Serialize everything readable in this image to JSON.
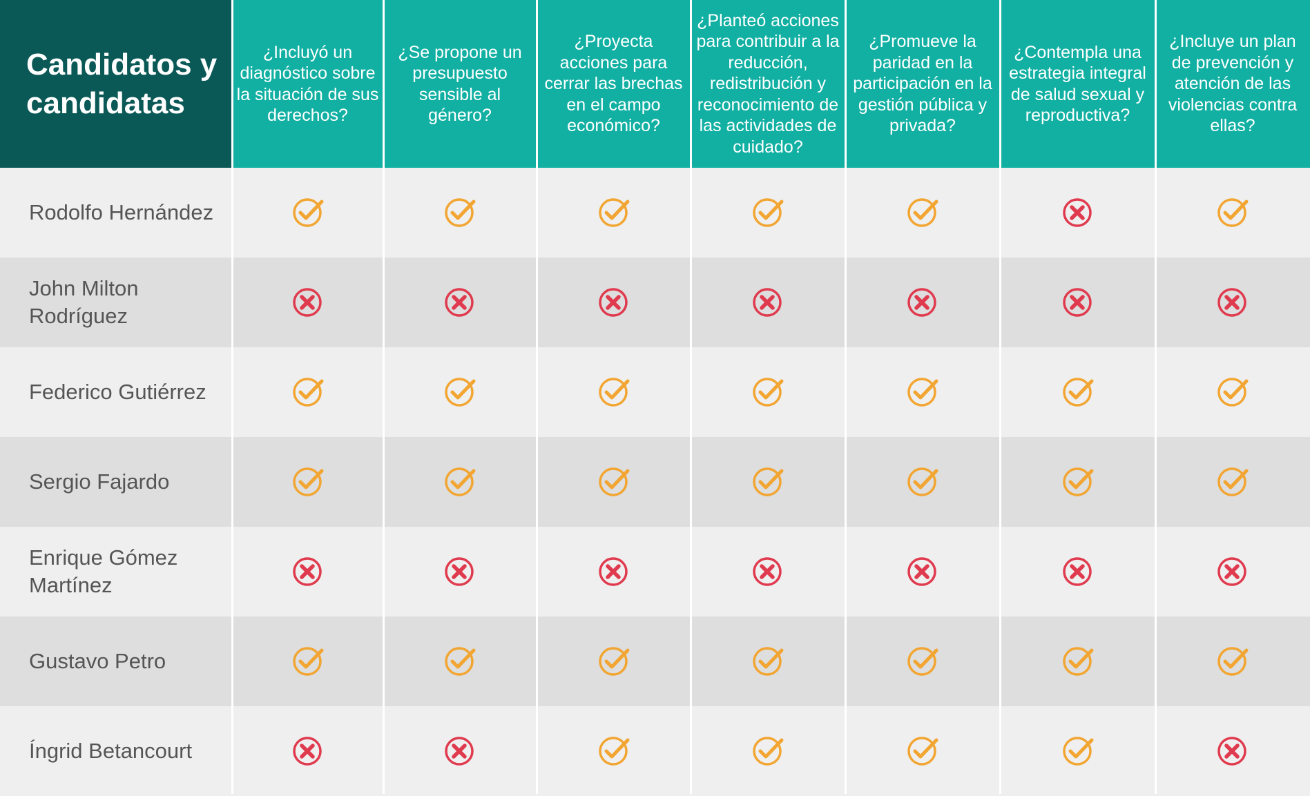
{
  "title": "Candidatos y candidatas",
  "questions": [
    "¿Incluyó un diagnóstico sobre la situación de sus derechos?",
    "¿Se propone un presupuesto sensible al género?",
    "¿Proyecta acciones para cerrar las brechas en el campo económico?",
    "¿Planteó acciones para contribuir a la reducción, redistribución y reconocimiento de las actividades de cuidado?",
    "¿Promueve la paridad en la participación en la gestión pública y privada?",
    "¿Contempla una estrategia integral de salud sexual y reproductiva?",
    "¿Incluye un plan de prevención y atención de las violencias contra ellas?"
  ],
  "rows": [
    {
      "name": "Rodolfo Hernández",
      "answers": [
        "yes",
        "yes",
        "yes",
        "yes",
        "yes",
        "no",
        "yes"
      ]
    },
    {
      "name": "John Milton Rodríguez",
      "answers": [
        "no",
        "no",
        "no",
        "no",
        "no",
        "no",
        "no"
      ]
    },
    {
      "name": "Federico Gutiérrez",
      "answers": [
        "yes",
        "yes",
        "yes",
        "yes",
        "yes",
        "yes",
        "yes"
      ]
    },
    {
      "name": "Sergio Fajardo",
      "answers": [
        "yes",
        "yes",
        "yes",
        "yes",
        "yes",
        "yes",
        "yes"
      ]
    },
    {
      "name": "Enrique Gómez Martínez",
      "answers": [
        "no",
        "no",
        "no",
        "no",
        "no",
        "no",
        "no"
      ]
    },
    {
      "name": "Gustavo Petro",
      "answers": [
        "yes",
        "yes",
        "yes",
        "yes",
        "yes",
        "yes",
        "yes"
      ]
    },
    {
      "name": "Íngrid Betancourt",
      "answers": [
        "no",
        "no",
        "yes",
        "yes",
        "yes",
        "yes",
        "no"
      ]
    }
  ],
  "icons": {
    "yes": "check-circle-icon",
    "no": "x-circle-icon"
  },
  "colors": {
    "title_bg": "#0b5957",
    "header_bg": "#12b0a3",
    "row_light": "#efefef",
    "row_dark": "#dedede",
    "check": "#f2a531",
    "cross": "#e03a4e"
  }
}
